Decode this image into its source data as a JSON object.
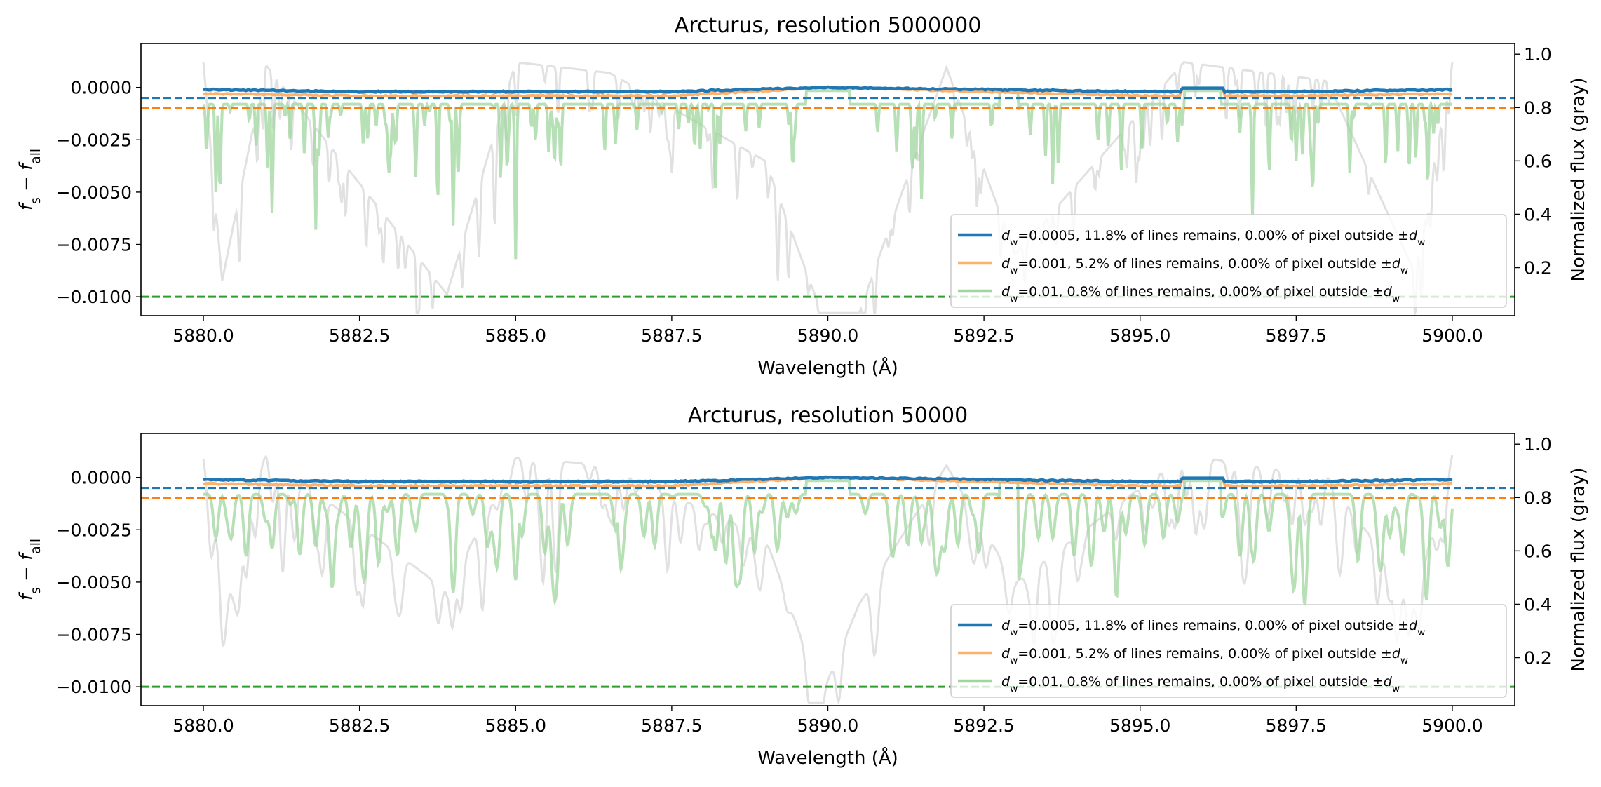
{
  "colors": {
    "blue": "#1f77b4",
    "orange": "#ff7f0e",
    "orange_light": "#ffb06a",
    "green": "#2ca02c",
    "green_light": "#9fd59f",
    "gray": "#c8c8c8"
  },
  "chart_data": [
    {
      "type": "line",
      "title": "Arcturus, resolution 5000000",
      "xlabel": "Wavelength (Å)",
      "ylabel_left": "f_s − f_all",
      "ylabel_right": "Normalized flux (gray)",
      "xlim": [
        5879,
        5901
      ],
      "ylim_left": [
        -0.0109,
        0.0021
      ],
      "ylim_right": [
        0.02,
        1.04
      ],
      "x_ticks": [
        5880.0,
        5882.5,
        5885.0,
        5887.5,
        5890.0,
        5892.5,
        5895.0,
        5897.5,
        5900.0
      ],
      "x_tick_labels": [
        "5880.0",
        "5882.5",
        "5885.0",
        "5887.5",
        "5890.0",
        "5892.5",
        "5895.0",
        "5897.5",
        "5900.0"
      ],
      "y_ticks_left": [
        0.0,
        -0.0025,
        -0.005,
        -0.0075,
        -0.01
      ],
      "y_tick_labels_left": [
        "0.0000",
        "−0.0025",
        "−0.0050",
        "−0.0075",
        "−0.0100"
      ],
      "y_ticks_right": [
        1.0,
        0.8,
        0.6,
        0.4,
        0.2
      ],
      "y_tick_labels_right": [
        "1.0",
        "0.8",
        "0.6",
        "0.4",
        "0.2"
      ],
      "hlines": [
        {
          "y": -0.0005,
          "color": "blue",
          "style": "dashed"
        },
        {
          "y": -0.001,
          "color": "orange",
          "style": "dashed"
        },
        {
          "y": -0.01,
          "color": "green",
          "style": "dashed"
        }
      ],
      "legend": {
        "placement": "lower right",
        "entries": [
          {
            "dw": "0.0005",
            "text": "=0.0005, 11.8% of lines remains, 0.00% of pixel outside ±",
            "color": "blue"
          },
          {
            "dw": "0.001",
            "text": "=0.001, 5.2% of lines remains, 0.00% of pixel outside ±",
            "color": "orange_light"
          },
          {
            "dw": "0.01",
            "text": "=0.01, 0.8% of lines remains, 0.00% of pixel outside ±",
            "color": "green_light"
          }
        ]
      },
      "series": [
        {
          "name": "dw=0.0005",
          "color": "blue",
          "x": [
            5880.0,
            5882.5,
            5885.0,
            5887.5,
            5890.0,
            5892.5,
            5895.0,
            5897.5,
            5900.0
          ],
          "y": [
            -0.0001,
            -0.0002,
            -0.0002,
            -0.0002,
            0.0,
            -0.0001,
            -0.0002,
            -0.0002,
            -0.0001
          ]
        },
        {
          "name": "dw=0.001",
          "color": "orange_light",
          "x": [
            5880.0,
            5882.5,
            5885.0,
            5887.5,
            5890.0,
            5892.5,
            5895.0,
            5897.5,
            5900.0
          ],
          "y": [
            -0.0003,
            -0.0004,
            -0.0004,
            -0.0004,
            0.0,
            -0.0002,
            -0.0004,
            -0.0004,
            -0.0003
          ]
        },
        {
          "name": "dw=0.01",
          "color": "green_light",
          "x": [
            5880.0,
            5880.2,
            5881.1,
            5881.8,
            5883.4,
            5884.0,
            5885.0,
            5886.6,
            5888.2,
            5890.0,
            5891.5,
            5893.6,
            5895.6,
            5896.8,
            5897.5,
            5899.7,
            5900.0
          ],
          "y": [
            -0.0009,
            -0.005,
            -0.006,
            -0.0068,
            -0.0043,
            -0.0066,
            -0.0082,
            -0.0027,
            -0.0048,
            0.0,
            -0.0053,
            -0.0046,
            -0.0026,
            -0.0061,
            -0.0035,
            -0.0022,
            -0.0008
          ]
        },
        {
          "name": "normalized flux",
          "axis": "right",
          "color": "gray",
          "x": [
            5880.0,
            5880.3,
            5881.0,
            5883.9,
            5885.0,
            5886.5,
            5889.0,
            5889.9,
            5890.5,
            5891.9,
            5893.0,
            5895.7,
            5898.0,
            5899.4,
            5900.0
          ],
          "y": [
            0.97,
            0.15,
            0.96,
            0.1,
            0.97,
            0.93,
            0.6,
            0.03,
            0.03,
            0.95,
            0.25,
            0.97,
            0.9,
            0.18,
            0.97
          ]
        }
      ]
    },
    {
      "type": "line",
      "title": "Arcturus, resolution 50000",
      "xlabel": "Wavelength (Å)",
      "ylabel_left": "f_s − f_all",
      "ylabel_right": "Normalized flux (gray)",
      "xlim": [
        5879,
        5901
      ],
      "ylim_left": [
        -0.0109,
        0.0021
      ],
      "ylim_right": [
        0.02,
        1.04
      ],
      "x_ticks": [
        5880.0,
        5882.5,
        5885.0,
        5887.5,
        5890.0,
        5892.5,
        5895.0,
        5897.5,
        5900.0
      ],
      "x_tick_labels": [
        "5880.0",
        "5882.5",
        "5885.0",
        "5887.5",
        "5890.0",
        "5892.5",
        "5895.0",
        "5897.5",
        "5900.0"
      ],
      "y_ticks_left": [
        0.0,
        -0.0025,
        -0.005,
        -0.0075,
        -0.01
      ],
      "y_tick_labels_left": [
        "0.0000",
        "−0.0025",
        "−0.0050",
        "−0.0075",
        "−0.0100"
      ],
      "y_ticks_right": [
        1.0,
        0.8,
        0.6,
        0.4,
        0.2
      ],
      "y_tick_labels_right": [
        "1.0",
        "0.8",
        "0.6",
        "0.4",
        "0.2"
      ],
      "hlines": [
        {
          "y": -0.0005,
          "color": "blue",
          "style": "dashed"
        },
        {
          "y": -0.001,
          "color": "orange",
          "style": "dashed"
        },
        {
          "y": -0.01,
          "color": "green",
          "style": "dashed"
        }
      ],
      "legend": {
        "placement": "lower right",
        "entries": [
          {
            "dw": "0.0005",
            "text": "=0.0005, 11.8% of lines remains, 0.00% of pixel outside ±",
            "color": "blue"
          },
          {
            "dw": "0.001",
            "text": "=0.001, 5.2% of lines remains, 0.00% of pixel outside ±",
            "color": "orange_light"
          },
          {
            "dw": "0.01",
            "text": "=0.01, 0.8% of lines remains, 0.00% of pixel outside ±",
            "color": "green_light"
          }
        ]
      },
      "series": [
        {
          "name": "dw=0.0005",
          "color": "blue",
          "x": [
            5880.0,
            5882.5,
            5885.0,
            5887.5,
            5890.0,
            5892.5,
            5895.0,
            5897.5,
            5900.0
          ],
          "y": [
            -0.0001,
            -0.0002,
            -0.0002,
            -0.0002,
            0.0,
            -0.0001,
            -0.0002,
            -0.0002,
            -0.0001
          ]
        },
        {
          "name": "dw=0.001",
          "color": "orange_light",
          "x": [
            5880.0,
            5882.5,
            5885.0,
            5887.5,
            5890.0,
            5892.5,
            5895.0,
            5897.5,
            5900.0
          ],
          "y": [
            -0.0003,
            -0.0004,
            -0.0004,
            -0.0004,
            0.0,
            -0.0002,
            -0.0004,
            -0.0004,
            -0.0003
          ]
        },
        {
          "name": "dw=0.01",
          "color": "green_light",
          "x": [
            5880.0,
            5880.2,
            5881.1,
            5881.8,
            5883.4,
            5884.0,
            5885.0,
            5886.6,
            5888.2,
            5890.0,
            5891.5,
            5893.6,
            5895.6,
            5896.8,
            5897.5,
            5899.7,
            5900.0
          ],
          "y": [
            -0.0009,
            -0.0029,
            -0.0034,
            -0.0033,
            -0.0025,
            -0.0055,
            -0.0049,
            -0.0025,
            -0.0035,
            0.0,
            -0.0031,
            -0.0029,
            -0.0021,
            -0.0037,
            -0.0022,
            -0.0015,
            -0.0008
          ]
        },
        {
          "name": "normalized flux",
          "axis": "right",
          "color": "gray",
          "x": [
            5880.0,
            5880.3,
            5881.0,
            5883.9,
            5885.0,
            5886.5,
            5889.0,
            5889.9,
            5890.5,
            5891.9,
            5893.0,
            5895.7,
            5898.0,
            5899.4,
            5900.0
          ],
          "y": [
            0.95,
            0.55,
            0.96,
            0.45,
            0.95,
            0.92,
            0.65,
            0.06,
            0.4,
            0.92,
            0.48,
            0.96,
            0.88,
            0.42,
            0.96
          ]
        }
      ]
    }
  ]
}
